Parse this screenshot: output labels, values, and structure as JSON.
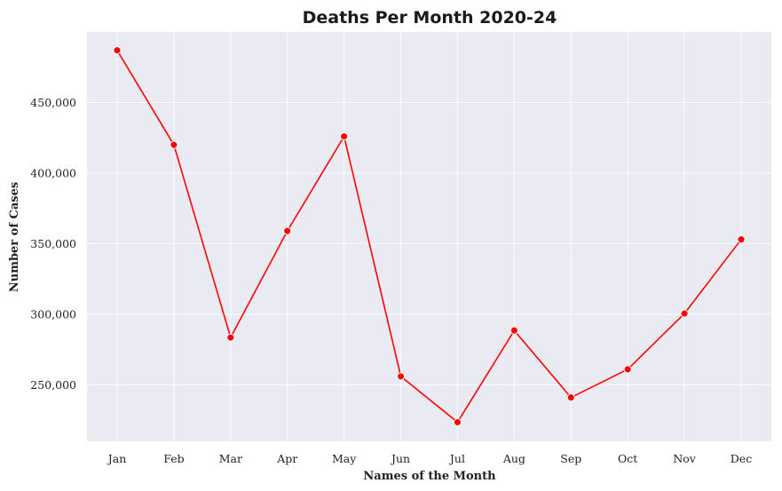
{
  "chart_data": {
    "type": "line",
    "title": "Deaths Per Month 2020-24",
    "xlabel": "Names of the Month",
    "ylabel": "Number of Cases",
    "categories": [
      "Jan",
      "Feb",
      "Mar",
      "Apr",
      "May",
      "Jun",
      "Jul",
      "Aug",
      "Sep",
      "Oct",
      "Nov",
      "Dec"
    ],
    "series": [
      {
        "values": [
          487000,
          420000,
          283500,
          359000,
          426000,
          256000,
          223500,
          288500,
          241000,
          261000,
          300500,
          353000
        ],
        "color": "#ff0000",
        "marker": "circle"
      }
    ],
    "yticks": [
      250000,
      300000,
      350000,
      400000,
      450000
    ],
    "ytick_labels": [
      "250,000",
      "300,000",
      "350,000",
      "400,000",
      "450,000"
    ],
    "ylim": [
      210000,
      500000
    ],
    "grid": true,
    "background_color": "#eaeaf2",
    "grid_color": "#ffffff"
  }
}
